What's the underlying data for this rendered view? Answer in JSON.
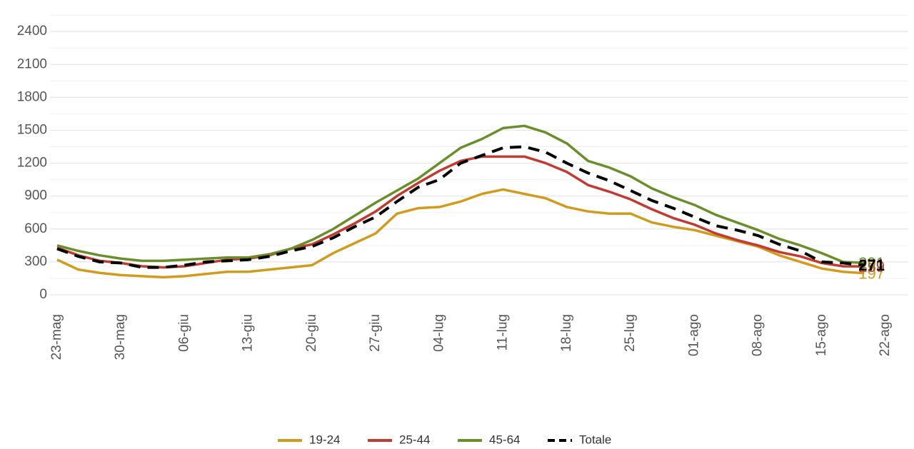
{
  "chart_data": {
    "type": "line",
    "categories": [
      "23-mag",
      null,
      null,
      "30-mag",
      null,
      null,
      "06-giu",
      null,
      null,
      "13-giu",
      null,
      null,
      "20-giu",
      null,
      null,
      "27-giu",
      null,
      null,
      "04-lug",
      null,
      null,
      "11-lug",
      null,
      null,
      "18-lug",
      null,
      null,
      "25-lug",
      null,
      null,
      "01-ago",
      null,
      null,
      "08-ago",
      null,
      null,
      "15-ago",
      null,
      null,
      "22-ago"
    ],
    "series": [
      {
        "name": "19-24",
        "color": "#d19b1e",
        "end_label": "197",
        "values": [
          320,
          230,
          200,
          180,
          170,
          160,
          170,
          190,
          210,
          210,
          230,
          250,
          270,
          380,
          470,
          560,
          740,
          790,
          800,
          850,
          920,
          960,
          920,
          880,
          800,
          760,
          740,
          740,
          660,
          620,
          590,
          540,
          490,
          440,
          360,
          300,
          240,
          210,
          197,
          null
        ]
      },
      {
        "name": "25-44",
        "color": "#c23b32",
        "end_label": "259",
        "values": [
          430,
          360,
          310,
          290,
          260,
          250,
          260,
          290,
          320,
          330,
          360,
          420,
          460,
          550,
          650,
          760,
          900,
          1020,
          1130,
          1220,
          1260,
          1260,
          1260,
          1200,
          1120,
          1000,
          940,
          870,
          780,
          700,
          640,
          560,
          500,
          450,
          390,
          350,
          290,
          260,
          259,
          null
        ]
      },
      {
        "name": "45-64",
        "color": "#6a8f2a",
        "end_label": "291",
        "values": [
          450,
          400,
          360,
          330,
          310,
          310,
          320,
          330,
          340,
          340,
          370,
          420,
          500,
          600,
          720,
          840,
          950,
          1060,
          1200,
          1340,
          1420,
          1520,
          1540,
          1480,
          1380,
          1220,
          1160,
          1080,
          970,
          890,
          820,
          730,
          660,
          590,
          510,
          450,
          380,
          300,
          291,
          null
        ]
      },
      {
        "name": "Totale",
        "color": "#000000",
        "dashed": true,
        "end_label": "271",
        "values": [
          420,
          350,
          300,
          290,
          250,
          250,
          270,
          300,
          310,
          320,
          350,
          400,
          440,
          520,
          620,
          710,
          850,
          980,
          1050,
          1200,
          1270,
          1340,
          1350,
          1300,
          1200,
          1110,
          1040,
          950,
          860,
          790,
          710,
          630,
          590,
          540,
          460,
          400,
          300,
          290,
          271,
          null
        ]
      }
    ],
    "ylim": [
      0,
      2570
    ],
    "yticks": [
      0,
      300,
      600,
      900,
      1200,
      1500,
      1800,
      2100,
      2400
    ],
    "grid": true,
    "legend": "bottom"
  }
}
